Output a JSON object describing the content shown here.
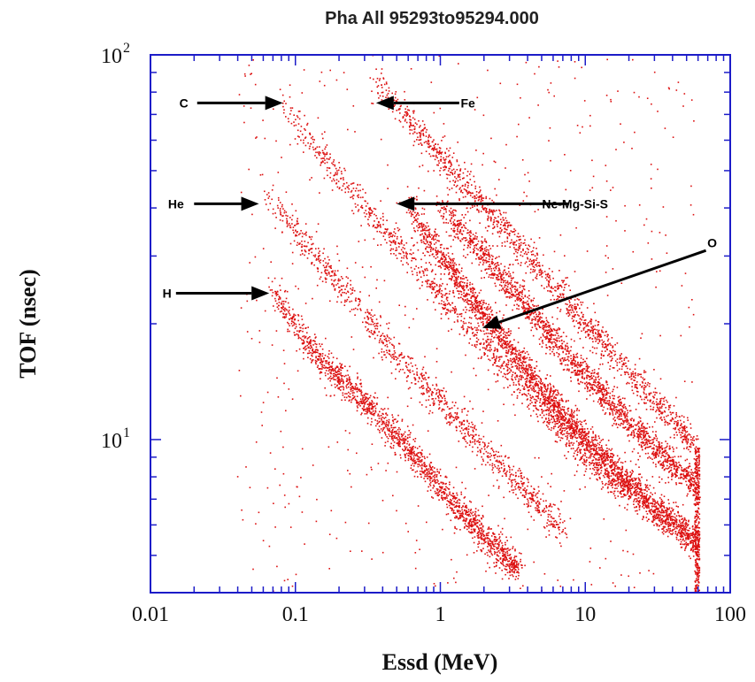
{
  "chart_data": {
    "type": "scatter",
    "title": "Pha All 95293to95294.000",
    "xlabel": "Essd (MeV)",
    "ylabel": "TOF (nsec)",
    "xscale": "log",
    "yscale": "log",
    "xlim": [
      0.01,
      100
    ],
    "ylim": [
      4,
      100
    ],
    "grid": false,
    "legend": "none",
    "colors": {
      "axes": "#1c1cc8",
      "points": "#dd1111",
      "arrows": "#000000"
    },
    "x_ticks": [
      {
        "value": 0.01,
        "label": "0.01"
      },
      {
        "value": 0.1,
        "label": "0.1"
      },
      {
        "value": 1,
        "label": "1"
      },
      {
        "value": 10,
        "label": "10"
      },
      {
        "value": 100,
        "label": "100"
      }
    ],
    "y_ticks": [
      {
        "value": 10,
        "base": "10",
        "exp": "1"
      },
      {
        "value": 100,
        "base": "10",
        "exp": "2"
      }
    ],
    "series": [
      {
        "name": "H",
        "points": [
          [
            0.07,
            24
          ],
          [
            0.15,
            16
          ],
          [
            0.3,
            12.5
          ],
          [
            0.6,
            9.5
          ],
          [
            1.0,
            7.5
          ],
          [
            1.6,
            6.2
          ],
          [
            2.3,
            5.3
          ],
          [
            3.5,
            4.6
          ]
        ]
      },
      {
        "name": "He",
        "points": [
          [
            0.06,
            45
          ],
          [
            0.12,
            32
          ],
          [
            0.25,
            23
          ],
          [
            0.5,
            16.5
          ],
          [
            1.0,
            12.5
          ],
          [
            2.0,
            9.5
          ],
          [
            4.0,
            7.2
          ],
          [
            7.0,
            5.8
          ]
        ]
      },
      {
        "name": "C",
        "points": [
          [
            0.08,
            75
          ],
          [
            0.15,
            55
          ],
          [
            0.3,
            40
          ],
          [
            0.6,
            30
          ],
          [
            1.2,
            22
          ],
          [
            2.5,
            16
          ],
          [
            5.0,
            12
          ],
          [
            10.0,
            9
          ],
          [
            20.0,
            7.2
          ]
        ]
      },
      {
        "name": "O",
        "points": [
          [
            0.6,
            40
          ],
          [
            1.0,
            30
          ],
          [
            2.0,
            21
          ],
          [
            4.0,
            15
          ],
          [
            8.0,
            11
          ],
          [
            15.0,
            8.5
          ],
          [
            30.0,
            6.6
          ],
          [
            60.0,
            5.4
          ]
        ]
      },
      {
        "name": "Ne-Mg-Si-S",
        "points": [
          [
            1.0,
            40
          ],
          [
            2.0,
            30
          ],
          [
            4.0,
            22
          ],
          [
            8.0,
            16
          ],
          [
            15.0,
            12.5
          ],
          [
            30.0,
            9.5
          ],
          [
            60.0,
            7.5
          ]
        ]
      },
      {
        "name": "Fe",
        "points": [
          [
            0.35,
            85
          ],
          [
            0.8,
            60
          ],
          [
            1.8,
            42
          ],
          [
            4.0,
            30
          ],
          [
            8.0,
            22
          ],
          [
            15.0,
            17
          ],
          [
            30.0,
            12.5
          ],
          [
            60.0,
            9.5
          ]
        ]
      }
    ],
    "annotations": [
      {
        "text": "C",
        "label_at": [
          0.017,
          75
        ],
        "arrow_from": [
          0.021,
          75
        ],
        "arrow_to": [
          0.082,
          75
        ]
      },
      {
        "text": "Fe",
        "label_at": [
          1.55,
          75
        ],
        "arrow_from": [
          1.35,
          75
        ],
        "arrow_to": [
          0.36,
          75
        ]
      },
      {
        "text": "He",
        "label_at": [
          0.015,
          41
        ],
        "arrow_from": [
          0.02,
          41
        ],
        "arrow_to": [
          0.056,
          41
        ]
      },
      {
        "text": "Ne-Mg-Si-S",
        "label_at": [
          8.5,
          41
        ],
        "arrow_from": [
          7.7,
          41
        ],
        "arrow_to": [
          0.5,
          41
        ]
      },
      {
        "text": "H",
        "label_at": [
          0.013,
          24
        ],
        "arrow_from": [
          0.015,
          24
        ],
        "arrow_to": [
          0.066,
          24
        ]
      },
      {
        "text": "O",
        "label_at": [
          75,
          32.5
        ],
        "arrow_from": [
          68,
          31
        ],
        "arrow_to": [
          1.95,
          19.5
        ]
      }
    ]
  }
}
